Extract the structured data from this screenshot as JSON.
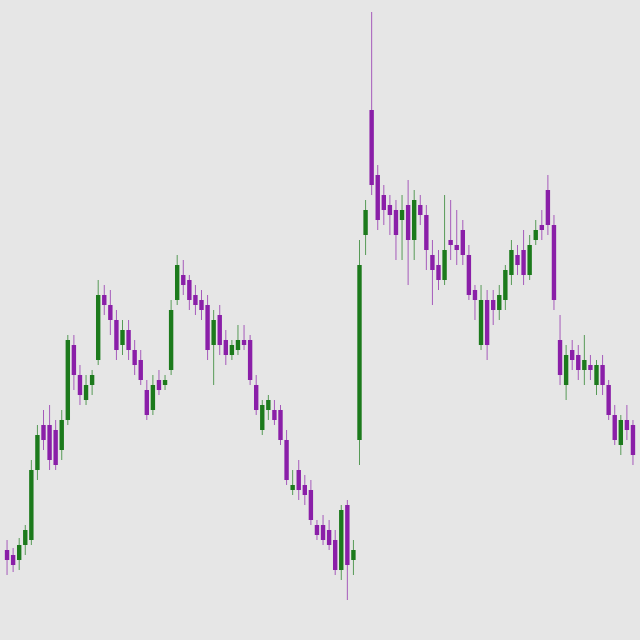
{
  "chart_data": {
    "type": "candlestick",
    "up_color": "#1c7a1c",
    "down_color": "#8a1fa8",
    "ylim": [
      0,
      640
    ],
    "open": [
      90,
      85,
      80,
      95,
      100,
      170,
      215,
      215,
      210,
      190,
      220,
      295,
      265,
      240,
      255,
      280,
      345,
      335,
      320,
      295,
      310,
      290,
      280,
      250,
      230,
      260,
      255,
      270,
      340,
      365,
      360,
      345,
      340,
      335,
      295,
      325,
      300,
      285,
      290,
      300,
      300,
      255,
      210,
      230,
      230,
      230,
      200,
      150,
      170,
      155,
      150,
      115,
      115,
      110,
      100,
      70,
      135,
      80,
      200,
      405,
      530,
      465,
      445,
      435,
      430,
      420,
      435,
      400,
      435,
      425,
      385,
      375,
      360,
      400,
      395,
      410,
      385,
      350,
      295,
      340,
      340,
      330,
      340,
      365,
      385,
      390,
      365,
      400,
      415,
      450,
      415,
      300,
      255,
      290,
      285,
      270,
      275,
      255,
      275,
      255,
      225,
      195,
      220,
      215
    ],
    "high": [
      100,
      92,
      102,
      115,
      180,
      215,
      230,
      235,
      220,
      230,
      305,
      305,
      275,
      265,
      270,
      360,
      355,
      350,
      330,
      320,
      320,
      300,
      290,
      260,
      265,
      270,
      265,
      340,
      385,
      380,
      365,
      355,
      350,
      345,
      330,
      335,
      310,
      300,
      315,
      315,
      305,
      265,
      240,
      245,
      240,
      235,
      210,
      170,
      180,
      165,
      160,
      120,
      125,
      120,
      110,
      135,
      140,
      100,
      400,
      440,
      628,
      475,
      455,
      445,
      440,
      445,
      460,
      450,
      445,
      435,
      400,
      390,
      445,
      440,
      430,
      420,
      395,
      355,
      355,
      350,
      350,
      355,
      375,
      400,
      395,
      410,
      405,
      420,
      430,
      465,
      425,
      325,
      295,
      300,
      295,
      305,
      285,
      280,
      285,
      260,
      235,
      225,
      235,
      220
    ],
    "low": [
      65,
      68,
      70,
      85,
      95,
      160,
      190,
      170,
      170,
      180,
      215,
      250,
      235,
      235,
      245,
      275,
      325,
      305,
      280,
      285,
      280,
      265,
      255,
      220,
      225,
      245,
      250,
      265,
      335,
      345,
      330,
      325,
      320,
      280,
      255,
      285,
      275,
      280,
      285,
      290,
      255,
      225,
      205,
      220,
      215,
      195,
      155,
      145,
      140,
      135,
      115,
      100,
      95,
      90,
      65,
      60,
      40,
      65,
      175,
      385,
      445,
      410,
      415,
      405,
      380,
      380,
      355,
      380,
      415,
      370,
      335,
      350,
      355,
      380,
      375,
      375,
      340,
      320,
      290,
      280,
      315,
      320,
      330,
      355,
      365,
      355,
      360,
      395,
      400,
      405,
      330,
      255,
      240,
      270,
      260,
      255,
      260,
      245,
      245,
      220,
      195,
      185,
      200,
      175
    ],
    "close": [
      80,
      75,
      95,
      110,
      170,
      205,
      200,
      180,
      175,
      220,
      300,
      265,
      245,
      255,
      265,
      345,
      335,
      320,
      290,
      310,
      290,
      275,
      260,
      225,
      255,
      250,
      260,
      330,
      375,
      355,
      340,
      335,
      330,
      290,
      320,
      295,
      285,
      295,
      300,
      295,
      260,
      230,
      235,
      240,
      220,
      200,
      160,
      155,
      150,
      145,
      120,
      105,
      100,
      95,
      70,
      130,
      75,
      90,
      375,
      430,
      455,
      420,
      430,
      425,
      405,
      430,
      400,
      440,
      425,
      390,
      370,
      360,
      390,
      395,
      390,
      385,
      345,
      340,
      340,
      295,
      330,
      345,
      370,
      390,
      375,
      365,
      395,
      410,
      410,
      415,
      340,
      265,
      285,
      280,
      270,
      280,
      270,
      275,
      255,
      225,
      200,
      220,
      210,
      185
    ]
  }
}
